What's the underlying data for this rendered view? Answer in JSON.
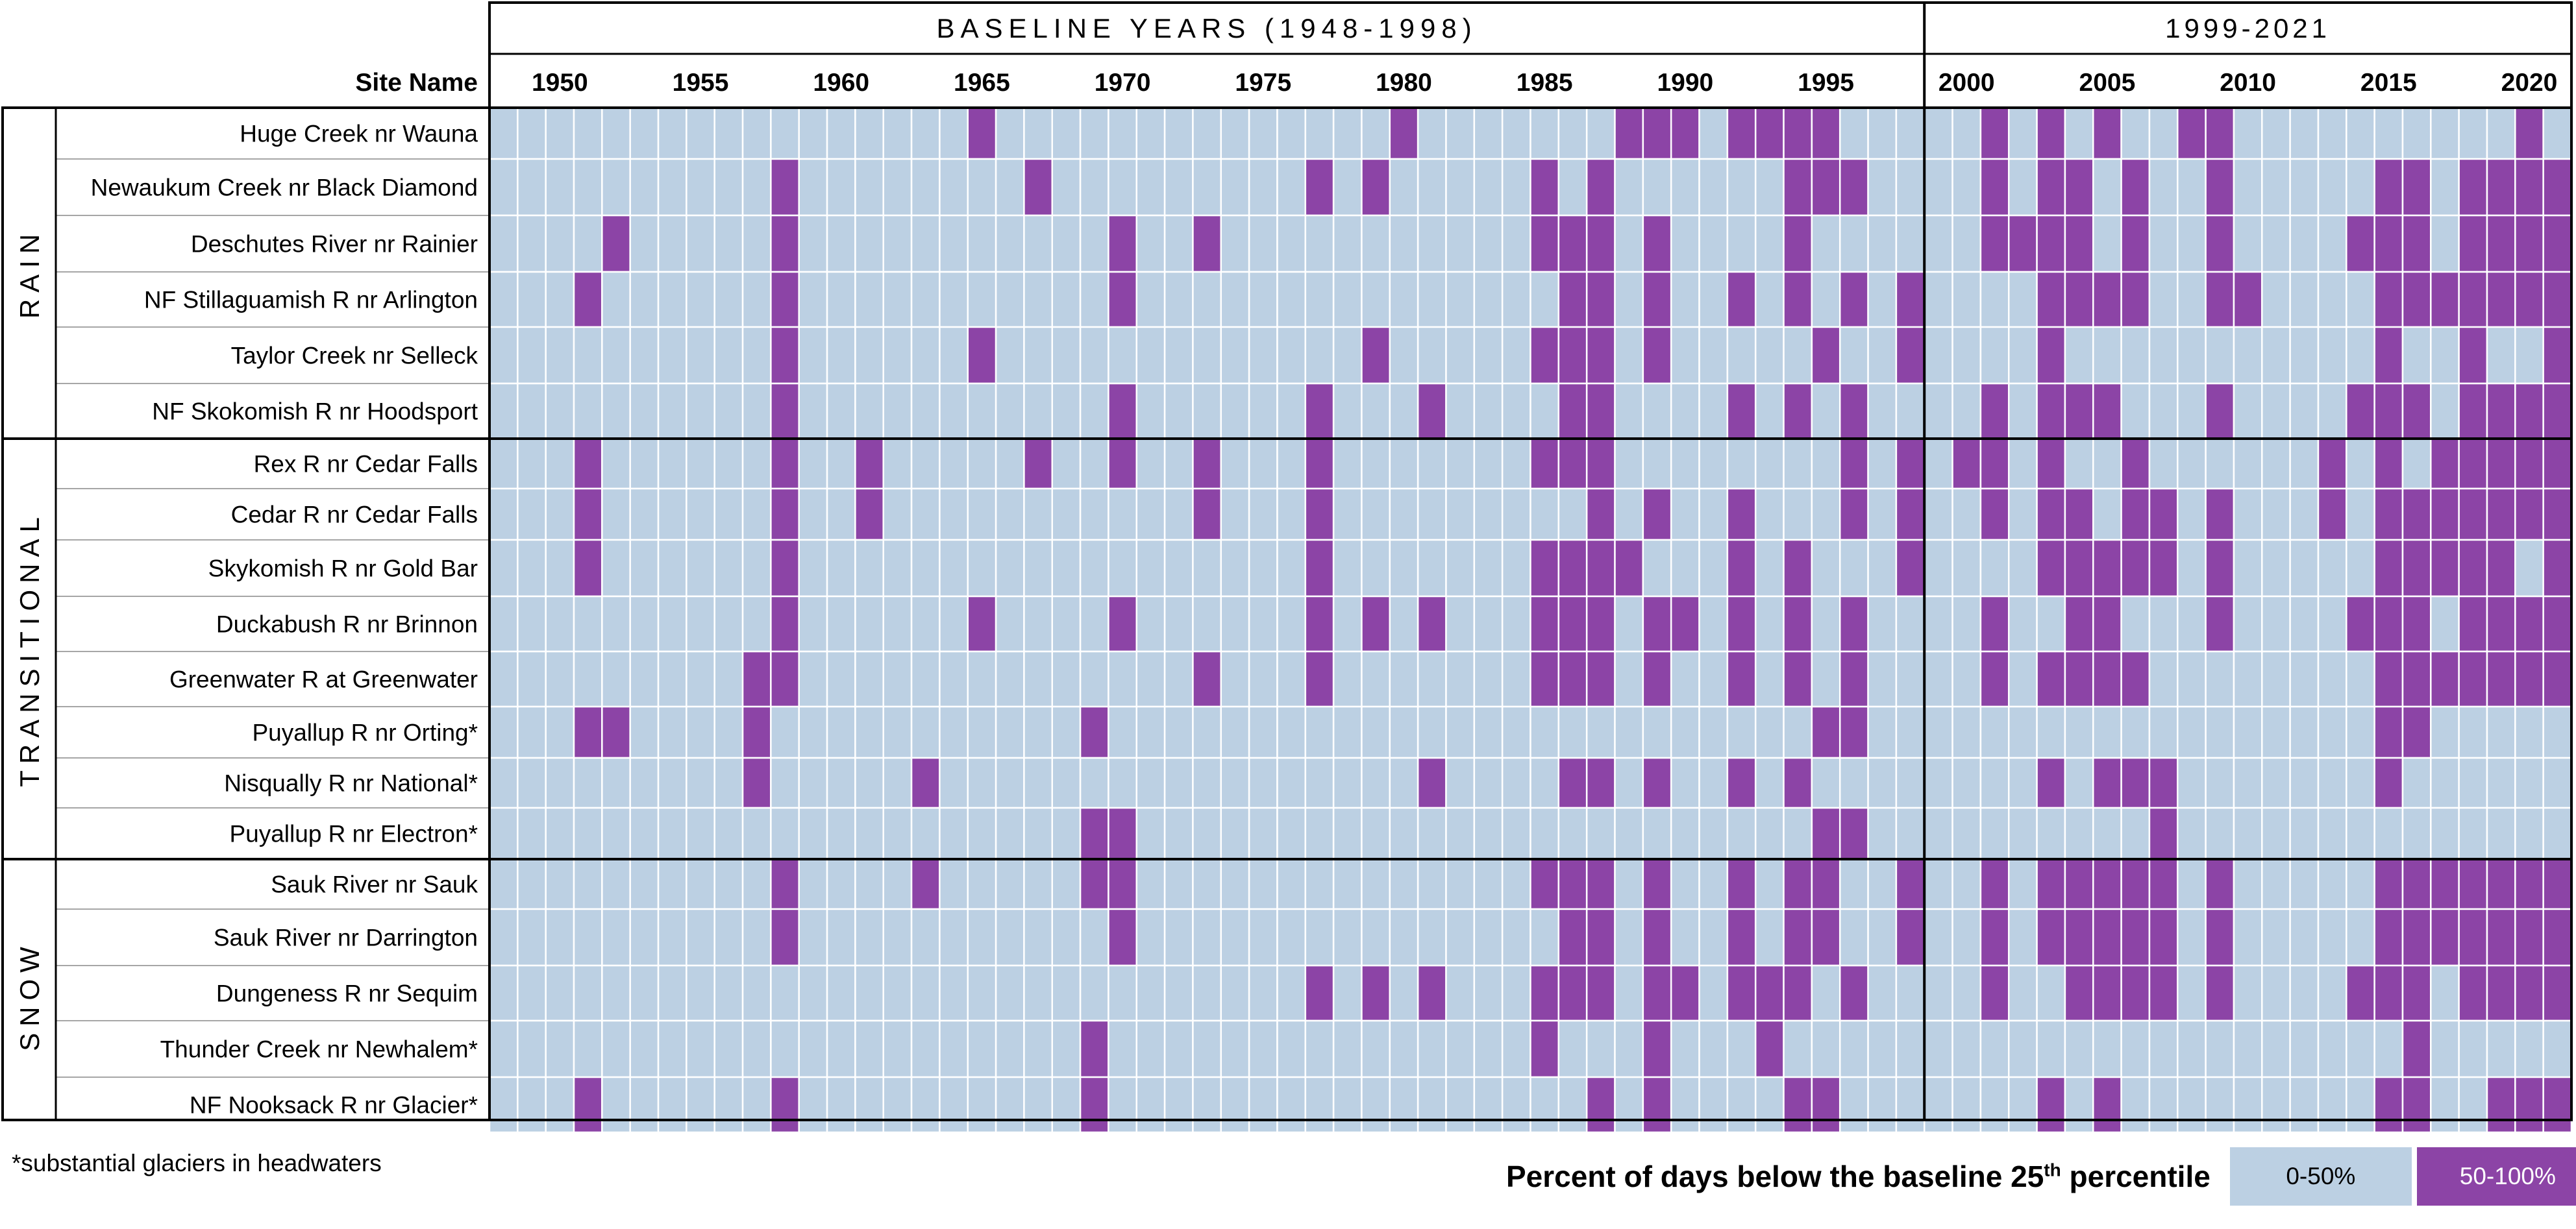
{
  "chart_data": {
    "type": "heatmap",
    "periods": [
      {
        "label": "BASELINE YEARS (1948-1998)",
        "start": 1948,
        "end": 1998
      },
      {
        "label": "1999-2021",
        "start": 1999,
        "end": 2021
      }
    ],
    "row_header": "Site Name",
    "year_ticks": [
      1950,
      1955,
      1960,
      1965,
      1970,
      1975,
      1980,
      1985,
      1990,
      1995,
      2000,
      2005,
      2010,
      2015,
      2020
    ],
    "groups": [
      {
        "label": "RAIN",
        "sites": [
          {
            "name": "Huge Creek nr Wauna",
            "high_years": [
              1965,
              1980,
              1988,
              1989,
              1990,
              1992,
              1993,
              1994,
              1995,
              2001,
              2003,
              2005,
              2008,
              2009,
              2020
            ]
          },
          {
            "name": "Newaukum Creek nr Black Diamond",
            "high_years": [
              1958,
              1967,
              1977,
              1979,
              1985,
              1987,
              1994,
              1995,
              1996,
              2001,
              2003,
              2004,
              2006,
              2009,
              2015,
              2016,
              2018,
              2019,
              2020,
              2021
            ]
          },
          {
            "name": "Deschutes River nr Rainier",
            "high_years": [
              1952,
              1958,
              1970,
              1973,
              1985,
              1986,
              1987,
              1989,
              1994,
              2001,
              2002,
              2003,
              2004,
              2006,
              2009,
              2014,
              2015,
              2016,
              2018,
              2019,
              2020,
              2021
            ]
          },
          {
            "name": "NF Stillaguamish R nr Arlington",
            "high_years": [
              1951,
              1958,
              1970,
              1986,
              1987,
              1989,
              1992,
              1994,
              1996,
              1998,
              2003,
              2004,
              2005,
              2006,
              2009,
              2010,
              2015,
              2016,
              2017,
              2018,
              2019,
              2020,
              2021
            ]
          },
          {
            "name": "Taylor Creek nr Selleck",
            "high_years": [
              1958,
              1965,
              1979,
              1985,
              1986,
              1987,
              1989,
              1995,
              1998,
              2003,
              2015,
              2018,
              2021
            ]
          },
          {
            "name": "NF Skokomish R nr Hoodsport",
            "high_years": [
              1958,
              1970,
              1977,
              1981,
              1986,
              1987,
              1992,
              1994,
              1996,
              2001,
              2003,
              2004,
              2005,
              2009,
              2014,
              2015,
              2016,
              2018,
              2019,
              2020,
              2021
            ]
          }
        ]
      },
      {
        "label": "TRANSITIONAL",
        "sites": [
          {
            "name": "Rex R nr Cedar Falls",
            "high_years": [
              1951,
              1958,
              1961,
              1967,
              1970,
              1973,
              1977,
              1985,
              1986,
              1987,
              1996,
              1998,
              2000,
              2001,
              2003,
              2006,
              2013,
              2015,
              2017,
              2018,
              2019,
              2020,
              2021
            ]
          },
          {
            "name": "Cedar R nr Cedar Falls",
            "high_years": [
              1951,
              1958,
              1961,
              1973,
              1977,
              1987,
              1989,
              1992,
              1996,
              1998,
              2001,
              2003,
              2004,
              2006,
              2007,
              2009,
              2013,
              2015,
              2016,
              2017,
              2018,
              2019,
              2020,
              2021
            ]
          },
          {
            "name": "Skykomish R nr Gold Bar",
            "high_years": [
              1951,
              1958,
              1977,
              1985,
              1986,
              1987,
              1988,
              1992,
              1994,
              1998,
              2003,
              2004,
              2005,
              2006,
              2007,
              2009,
              2015,
              2016,
              2017,
              2018,
              2019,
              2021
            ]
          },
          {
            "name": "Duckabush R nr Brinnon",
            "high_years": [
              1958,
              1965,
              1970,
              1977,
              1979,
              1981,
              1985,
              1986,
              1987,
              1989,
              1990,
              1992,
              1994,
              1996,
              2001,
              2004,
              2005,
              2009,
              2014,
              2015,
              2016,
              2018,
              2019,
              2020,
              2021
            ]
          },
          {
            "name": "Greenwater R at Greenwater",
            "high_years": [
              1957,
              1958,
              1973,
              1977,
              1985,
              1986,
              1987,
              1989,
              1992,
              1994,
              1996,
              2001,
              2003,
              2004,
              2005,
              2006,
              2015,
              2016,
              2017,
              2018,
              2019,
              2020,
              2021
            ]
          },
          {
            "name": "Puyallup R nr Orting*",
            "high_years": [
              1951,
              1952,
              1957,
              1969,
              1995,
              1996,
              2015,
              2016
            ]
          },
          {
            "name": "Nisqually R nr National*",
            "high_years": [
              1957,
              1963,
              1981,
              1986,
              1987,
              1989,
              1992,
              1994,
              2003,
              2005,
              2006,
              2007,
              2015
            ]
          },
          {
            "name": "Puyallup R nr Electron*",
            "high_years": [
              1969,
              1970,
              1995,
              1996,
              2007
            ]
          }
        ]
      },
      {
        "label": "SNOW",
        "sites": [
          {
            "name": "Sauk River nr Sauk",
            "high_years": [
              1958,
              1963,
              1969,
              1970,
              1985,
              1986,
              1987,
              1989,
              1992,
              1994,
              1995,
              1998,
              2001,
              2003,
              2004,
              2005,
              2006,
              2007,
              2009,
              2015,
              2016,
              2017,
              2018,
              2019,
              2020,
              2021
            ]
          },
          {
            "name": "Sauk River nr Darrington",
            "high_years": [
              1958,
              1970,
              1986,
              1987,
              1989,
              1992,
              1994,
              1995,
              1998,
              2001,
              2003,
              2004,
              2005,
              2006,
              2007,
              2009,
              2015,
              2016,
              2017,
              2018,
              2019,
              2020,
              2021
            ]
          },
          {
            "name": "Dungeness R nr Sequim",
            "high_years": [
              1977,
              1979,
              1981,
              1985,
              1986,
              1987,
              1989,
              1990,
              1992,
              1993,
              1994,
              1996,
              2001,
              2004,
              2005,
              2006,
              2007,
              2009,
              2014,
              2015,
              2016,
              2018,
              2019,
              2020,
              2021
            ]
          },
          {
            "name": "Thunder Creek nr Newhalem*",
            "high_years": [
              1969,
              1985,
              1989,
              1993,
              2016
            ]
          },
          {
            "name": "NF Nooksack R nr Glacier*",
            "high_years": [
              1951,
              1958,
              1969,
              1987,
              1989,
              1994,
              1995,
              2003,
              2005,
              2015,
              2016,
              2019,
              2020,
              2021
            ]
          }
        ]
      }
    ],
    "categories": [
      {
        "label": "0-50%",
        "color": "#bcd0e3"
      },
      {
        "label": "50-100%",
        "color": "#8c44a6"
      }
    ]
  },
  "legend": {
    "title_main": "Percent of days below the baseline 25",
    "title_sup": "th",
    "title_end": " percentile",
    "low_label": "0-50%",
    "high_label": "50-100%",
    "low_color": "#bcd0e3",
    "high_color": "#8c44a6"
  },
  "footnote": "*substantial glaciers in headwaters"
}
